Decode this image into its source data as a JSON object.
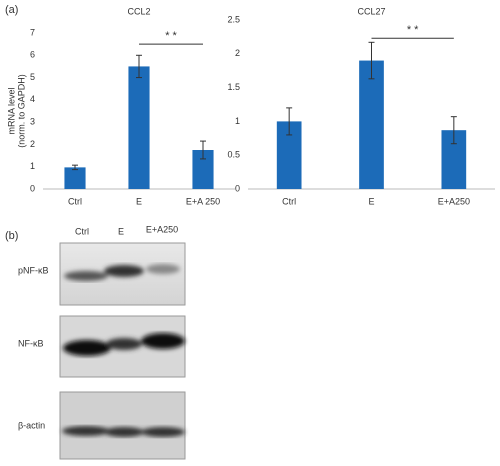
{
  "panel_a": {
    "label": "(a)"
  },
  "chart_data": [
    {
      "type": "bar",
      "title": "CCL2",
      "ylabel": [
        "mRNA level",
        "(norm. to GAPDH)"
      ],
      "categories": [
        "Ctrl",
        "E",
        "E+A 250"
      ],
      "series": [
        {
          "name": "CCL2",
          "color": "#1c6bb8",
          "values": [
            0.97,
            5.5,
            1.75
          ],
          "errors": [
            0.1,
            0.5,
            0.4
          ]
        }
      ],
      "ylim": [
        0,
        7
      ],
      "yticks": [
        0,
        1,
        2,
        3,
        4,
        5,
        6,
        7
      ],
      "annotations": [
        {
          "text": "* *",
          "from": 1,
          "to": 2,
          "y": 6.5
        }
      ]
    },
    {
      "type": "bar",
      "title": "CCL27",
      "categories": [
        "Ctrl",
        "E",
        "E+A250"
      ],
      "series": [
        {
          "name": "CCL27",
          "color": "#1c6bb8",
          "values": [
            1.0,
            1.9,
            0.87
          ],
          "errors": [
            0.2,
            0.27,
            0.2
          ]
        }
      ],
      "ylim": [
        0,
        2.5
      ],
      "yticks": [
        0,
        0.5,
        1,
        1.5,
        2,
        2.5
      ],
      "annotations": [
        {
          "text": "* *",
          "from": 1,
          "to": 2,
          "y": 2.23
        }
      ]
    }
  ],
  "panel_b": {
    "label": "(b)",
    "columns": [
      "Ctrl",
      "E",
      "E+A250"
    ],
    "rows": [
      "pNF-κB",
      "NF-κB",
      "β-actin"
    ]
  }
}
